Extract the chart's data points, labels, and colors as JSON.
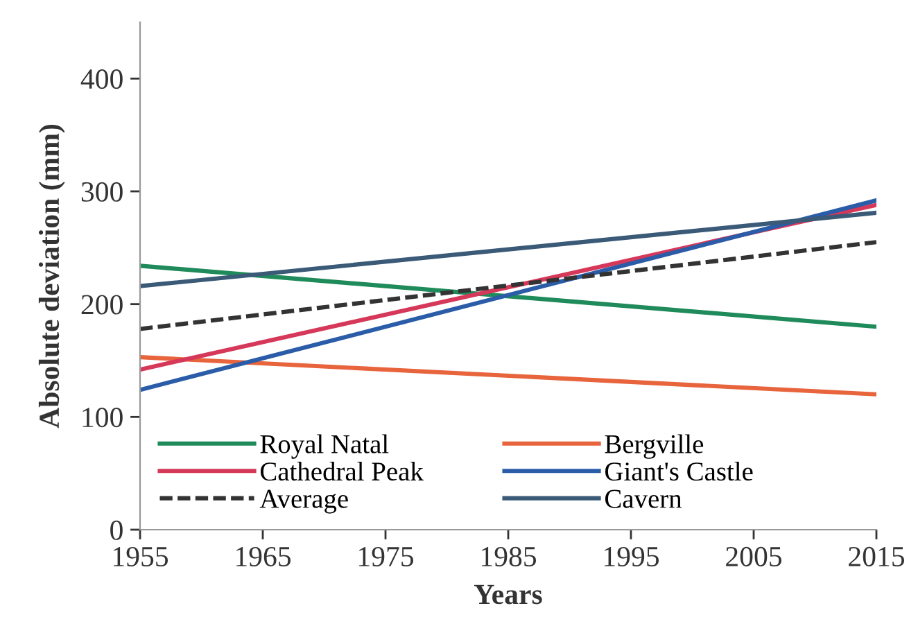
{
  "chart_data": {
    "type": "line",
    "xlabel": "Years",
    "ylabel": "Absolute deviation (mm)",
    "x": [
      1955,
      2015
    ],
    "series": [
      {
        "name": "Royal Natal",
        "color": "#1f8a5a",
        "values": [
          234,
          180
        ]
      },
      {
        "name": "Bergville",
        "color": "#e8643c",
        "values": [
          153,
          120
        ]
      },
      {
        "name": "Cathedral Peak",
        "color": "#d6385a",
        "values": [
          142,
          288
        ]
      },
      {
        "name": "Giant's Castle",
        "color": "#2a5ca8",
        "values": [
          124,
          292
        ]
      },
      {
        "name": "Average",
        "color": "#333333",
        "values": [
          178,
          255
        ],
        "line_style": "dashed"
      },
      {
        "name": "Cavern",
        "color": "#3a5a78",
        "values": [
          216,
          281
        ]
      }
    ],
    "xlim": [
      1955,
      2015
    ],
    "xticks": [
      1955,
      1965,
      1975,
      1985,
      1995,
      2005,
      2015
    ],
    "ylim": [
      0,
      450
    ],
    "yticks": [
      0,
      100,
      200,
      300,
      400
    ],
    "grid": false,
    "legend": "bottom",
    "marker": "none",
    "line_style": "solid"
  }
}
